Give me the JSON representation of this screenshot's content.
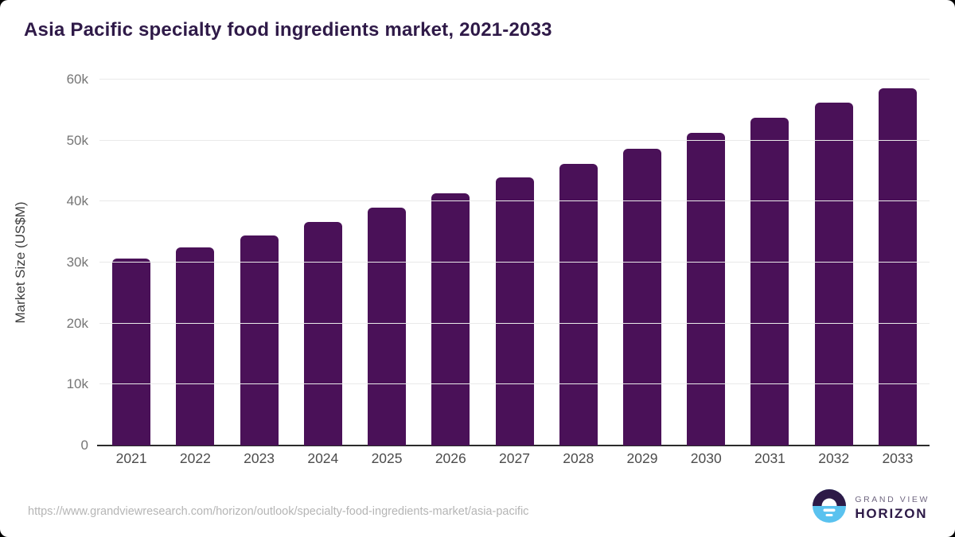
{
  "page": {
    "title": "Asia Pacific specialty food ingredients market, 2021-2033",
    "source_url": "https://www.grandviewresearch.com/horizon/outlook/specialty-food-ingredients-market/asia-pacific",
    "logo": {
      "line1": "GRAND VIEW",
      "line2": "HORIZON"
    }
  },
  "chart_data": {
    "type": "bar",
    "title": "Asia Pacific specialty food ingredients market, 2021-2033",
    "categories": [
      "2021",
      "2022",
      "2023",
      "2024",
      "2025",
      "2026",
      "2027",
      "2028",
      "2029",
      "2030",
      "2031",
      "2032",
      "2033"
    ],
    "values": [
      30700,
      32500,
      34500,
      36700,
      39000,
      41300,
      43900,
      46200,
      48700,
      51200,
      53700,
      56200,
      58600
    ],
    "xlabel": "",
    "ylabel": "Market Size (US$M)",
    "ylim": [
      0,
      60000
    ],
    "y_ticks": [
      {
        "value": 0,
        "label": "0"
      },
      {
        "value": 10000,
        "label": "10k"
      },
      {
        "value": 20000,
        "label": "20k"
      },
      {
        "value": 30000,
        "label": "30k"
      },
      {
        "value": 40000,
        "label": "40k"
      },
      {
        "value": 50000,
        "label": "50k"
      },
      {
        "value": 60000,
        "label": "60k"
      }
    ],
    "grid": true,
    "legend": false
  },
  "colors": {
    "bar": "#4a1158",
    "title": "#2f1a48",
    "gridline": "#e9e9e9",
    "axis_line": "#2b2b2b",
    "y_tick_text": "#757575",
    "x_tick_text": "#4c4c4c",
    "source_text": "#b5b5b5",
    "logo_dark": "#2d1a47",
    "logo_blue": "#5ac2ef"
  }
}
